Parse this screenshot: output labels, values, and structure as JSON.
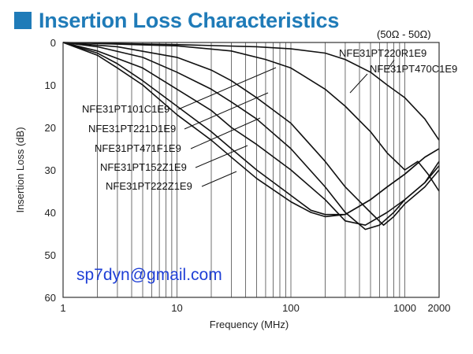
{
  "header": {
    "title": "Insertion Loss Characteristics",
    "accent_color": "#1f7bb8",
    "icon": "square-bullet-icon"
  },
  "chart_data": {
    "type": "line",
    "title": "Insertion Loss Characteristics",
    "xlabel": "Frequency (MHz)",
    "ylabel": "Insertion Loss (dB)",
    "x_scale": "log",
    "xlim": [
      1,
      2000
    ],
    "ylim": [
      0,
      60
    ],
    "y_inverted": true,
    "x_ticks": [
      1,
      10,
      100,
      1000,
      2000
    ],
    "x_tick_labels": [
      "1",
      "10",
      "100",
      "1000",
      "2000"
    ],
    "y_ticks": [
      0,
      10,
      20,
      30,
      40,
      50,
      60
    ],
    "y_tick_labels": [
      "0",
      "10",
      "20",
      "30",
      "40",
      "50",
      "60"
    ],
    "grid": "vertical minor",
    "annotation": "(50Ω - 50Ω)",
    "watermark": "sp7dyn@gmail.com",
    "line_color": "#111111",
    "series": [
      {
        "name": "NFE31PT220R1E9",
        "x": [
          1,
          10,
          50,
          100,
          200,
          300,
          500,
          700,
          1000,
          1500,
          2000
        ],
        "y": [
          0,
          0.5,
          1.0,
          1.5,
          2.5,
          4,
          7,
          10,
          13,
          18,
          23
        ]
      },
      {
        "name": "NFE31PT470C1E9",
        "x": [
          1,
          10,
          30,
          60,
          100,
          200,
          300,
          500,
          700,
          1000,
          1300,
          1600,
          2000
        ],
        "y": [
          0,
          0.8,
          2,
          4,
          6,
          11,
          15,
          21,
          26,
          30,
          28,
          31,
          35
        ]
      },
      {
        "name": "NFE31PT101C1E9",
        "x": [
          1,
          3,
          10,
          20,
          30,
          50,
          100,
          200,
          300,
          500,
          650,
          800,
          1000,
          1500,
          2000
        ],
        "y": [
          0,
          1,
          3.5,
          6.5,
          9,
          13,
          19,
          28,
          34,
          40,
          43,
          41,
          38,
          34,
          30
        ]
      },
      {
        "name": "NFE31PT221D1E9",
        "x": [
          1,
          2,
          5,
          10,
          20,
          30,
          50,
          100,
          200,
          300,
          450,
          600,
          800,
          1000,
          1500,
          2000
        ],
        "y": [
          0,
          1,
          3.5,
          7,
          11,
          14,
          18,
          25,
          34,
          40,
          44,
          43,
          40,
          37,
          33,
          29
        ]
      },
      {
        "name": "NFE31PT471F1E9",
        "x": [
          1,
          2,
          5,
          10,
          20,
          30,
          50,
          100,
          200,
          300,
          450,
          700,
          1000,
          1500,
          2000
        ],
        "y": [
          0,
          2,
          6,
          11,
          16,
          20,
          24,
          30,
          37,
          42,
          43,
          40,
          37,
          33,
          28
        ]
      },
      {
        "name": "NFE31PT152Z1E9",
        "x": [
          1,
          2,
          3,
          5,
          10,
          20,
          30,
          50,
          100,
          150,
          200,
          300,
          500,
          700,
          1000,
          1500,
          2000
        ],
        "y": [
          0,
          2.5,
          5,
          9,
          15,
          21,
          25,
          30,
          36,
          39.5,
          40.5,
          40.5,
          37,
          34,
          31,
          27,
          25
        ]
      },
      {
        "name": "NFE31PT222Z1E9",
        "x": [
          1,
          2,
          3,
          5,
          10,
          20,
          30,
          50,
          100,
          150,
          200,
          300,
          500,
          700,
          1000,
          1500,
          2000
        ],
        "y": [
          0,
          3,
          6,
          10,
          17,
          23,
          27,
          32,
          37.5,
          40,
          41,
          40.5,
          37,
          34,
          31,
          27,
          25
        ]
      }
    ]
  }
}
